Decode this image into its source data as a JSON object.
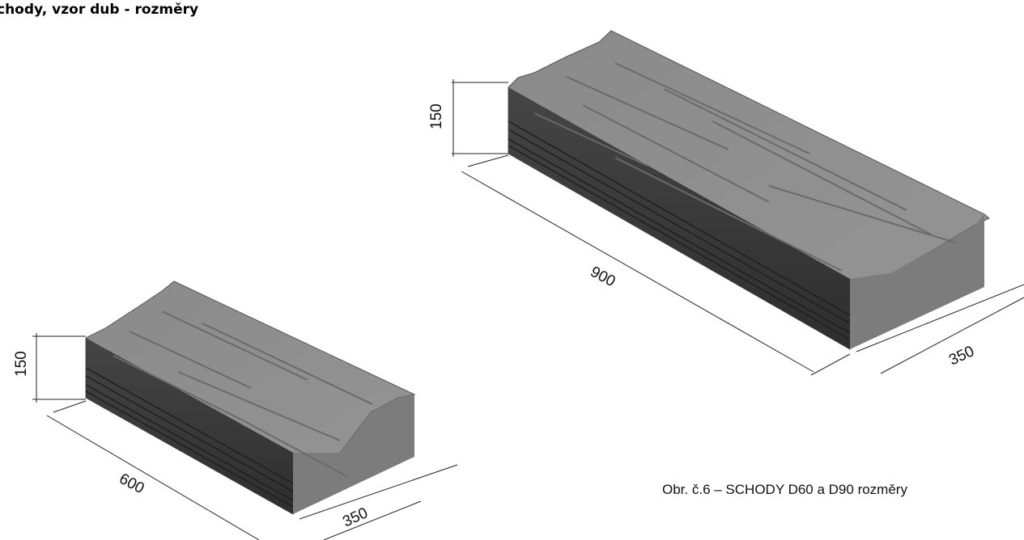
{
  "title": "chody, vzor dub - rozměry",
  "caption": "Obr. č.6 – SCHODY D60 a D90 rozměry",
  "small_step": {
    "height": "150",
    "length": "600",
    "depth": "350"
  },
  "large_step": {
    "height": "150",
    "length": "900",
    "depth": "350"
  },
  "colors": {
    "top": "#8e8e8e",
    "front": "#3a3a3a",
    "side": "#7b7b7b",
    "dim_line": "#222222"
  }
}
